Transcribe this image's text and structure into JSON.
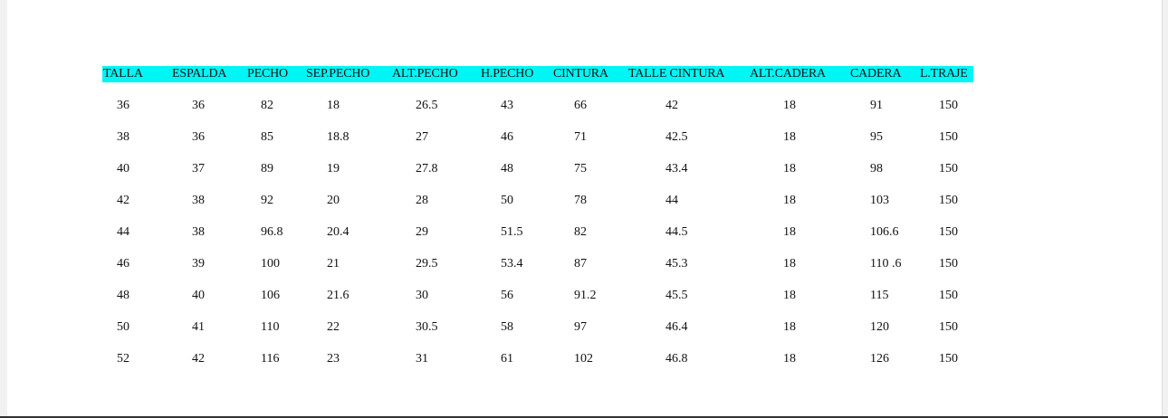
{
  "table": {
    "header_color": "#00f5f5",
    "headers": [
      "TALLA",
      "ESPALDA",
      "PECHO",
      "SEP.PECHO",
      "ALT.PECHO",
      "H.PECHO",
      "CINTURA",
      "TALLE CINTURA",
      "ALT.CADERA",
      "CADERA",
      "L.TRAJE"
    ],
    "rows": [
      [
        "36",
        "36",
        "82",
        "18",
        "26.5",
        "43",
        "66",
        "42",
        "18",
        "91",
        "150"
      ],
      [
        "38",
        "36",
        "85",
        "18.8",
        "27",
        "46",
        "71",
        "42.5",
        "18",
        "95",
        "150"
      ],
      [
        "40",
        "37",
        "89",
        "19",
        "27.8",
        "48",
        "75",
        "43.4",
        "18",
        "98",
        "150"
      ],
      [
        "42",
        "38",
        "92",
        "20",
        "28",
        "50",
        "78",
        "44",
        "18",
        "103",
        "150"
      ],
      [
        "44",
        "38",
        "96.8",
        "20.4",
        "29",
        "51.5",
        "82",
        "44.5",
        "18",
        "106.6",
        "150"
      ],
      [
        "46",
        "39",
        "100",
        "21",
        "29.5",
        "53.4",
        "87",
        "45.3",
        "18",
        "110 .6",
        "150"
      ],
      [
        "48",
        "40",
        "106",
        "21.6",
        "30",
        "56",
        "91.2",
        "45.5",
        "18",
        "115",
        "150"
      ],
      [
        "50",
        "41",
        "110",
        "22",
        "30.5",
        "58",
        "97",
        "46.4",
        "18",
        "120",
        "150"
      ],
      [
        "52",
        "42",
        "116",
        "23",
        "31",
        "61",
        "102",
        "46.8",
        "18",
        "126",
        "150"
      ]
    ]
  }
}
